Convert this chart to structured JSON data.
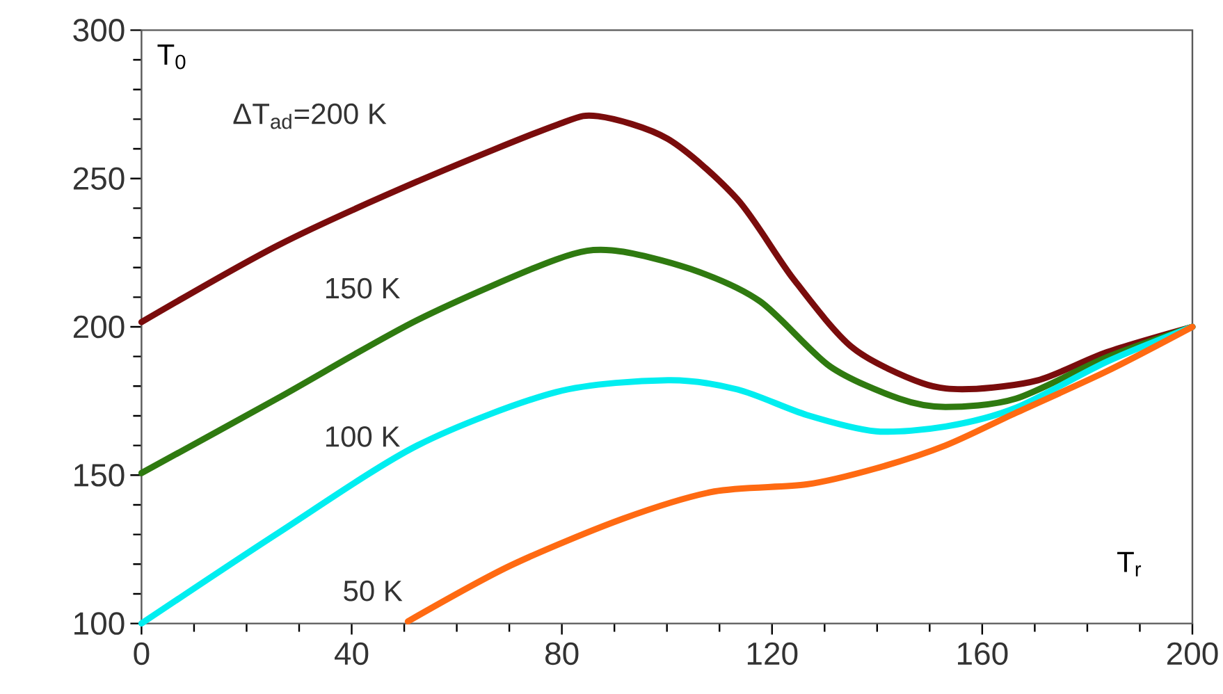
{
  "chart_data": {
    "type": "line",
    "xlabel": "T$_{r}$",
    "ylabel": "T$_{0}$",
    "xlim": [
      0,
      200
    ],
    "ylim": [
      100,
      300
    ],
    "xticks": [
      0,
      40,
      80,
      120,
      160,
      200
    ],
    "yticks": [
      100,
      150,
      200,
      250,
      300
    ],
    "series": [
      {
        "color": "#7a0c0c",
        "x": [
          0,
          26,
          52.5,
          78.9,
          86.9,
          100.2,
          113.4,
          124,
          135.3,
          148.6,
          157.5,
          170.6,
          183.8,
          200
        ],
        "values": [
          201.6,
          227.5,
          249,
          268,
          271,
          263.3,
          243,
          216.3,
          193,
          181,
          179,
          182,
          191.5,
          200
        ]
      },
      {
        "color": "#2f7a10",
        "x": [
          0,
          26,
          52.5,
          78.9,
          89.5,
          104.5,
          117.7,
          131,
          144.2,
          153,
          166.4,
          183.8,
          200
        ],
        "values": [
          150.7,
          176,
          202.3,
          222.7,
          225.8,
          219.5,
          208.6,
          186.7,
          175.8,
          173,
          175.8,
          189.8,
          200
        ]
      },
      {
        "color": "#00eef0",
        "x": [
          0,
          26,
          52.5,
          78.9,
          100.2,
          113.4,
          126.6,
          139.8,
          153,
          166.4,
          183.8,
          200
        ],
        "values": [
          100,
          130.5,
          160,
          178,
          182,
          178.9,
          170.3,
          164.8,
          166.4,
          172.7,
          188.3,
          200
        ]
      },
      {
        "color": "#ff6a12",
        "x": [
          50.7,
          70.2,
          91.6,
          109,
          126.6,
          139.8,
          153,
          166.4,
          183.8,
          200
        ],
        "values": [
          100.7,
          119.5,
          135.3,
          144.5,
          146.9,
          152.3,
          160,
          171,
          185.1,
          200
        ]
      }
    ],
    "annotations": [
      "ΔT$_{ad}$=200 K",
      "150 K",
      "100 K",
      "50 K"
    ]
  }
}
